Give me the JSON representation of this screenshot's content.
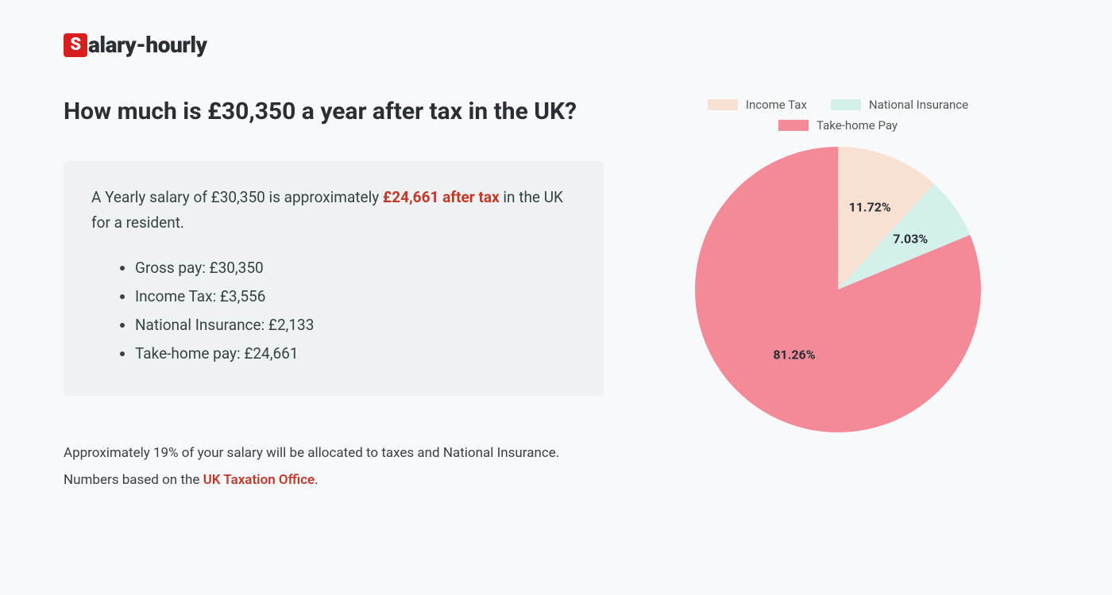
{
  "logo": {
    "badge_letter": "S",
    "rest": "alary-hourly"
  },
  "heading": "How much is £30,350 a year after tax in the UK?",
  "summary": {
    "intro_pre": "A Yearly salary of £30,350 is approximately ",
    "highlight": "£24,661 after tax",
    "intro_post": " in the UK for a resident.",
    "items": [
      "Gross pay: £30,350",
      "Income Tax: £3,556",
      "National Insurance: £2,133",
      "Take-home pay: £24,661"
    ]
  },
  "footnote": {
    "line1": "Approximately 19% of your salary will be allocated to taxes and National Insurance.",
    "line2_pre": "Numbers based on the ",
    "link_text": "UK Taxation Office",
    "line2_post": "."
  },
  "chart": {
    "type": "pie",
    "size": 360,
    "background": "#f7f9fa",
    "slices": [
      {
        "label": "Income Tax",
        "pct": 11.72,
        "color": "#f8e0d3",
        "display": "11.72%"
      },
      {
        "label": "National Insurance",
        "pct": 7.03,
        "color": "#d4f0eb",
        "display": "7.03%"
      },
      {
        "label": "Take-home Pay",
        "pct": 81.26,
        "color": "#f48a98",
        "display": "81.26%"
      }
    ],
    "label_fontsize": 16,
    "label_fontweight": 700,
    "label_color": "#2a2f34",
    "legend_fontsize": 15,
    "legend_color": "#555555",
    "start_angle_deg": -90
  }
}
